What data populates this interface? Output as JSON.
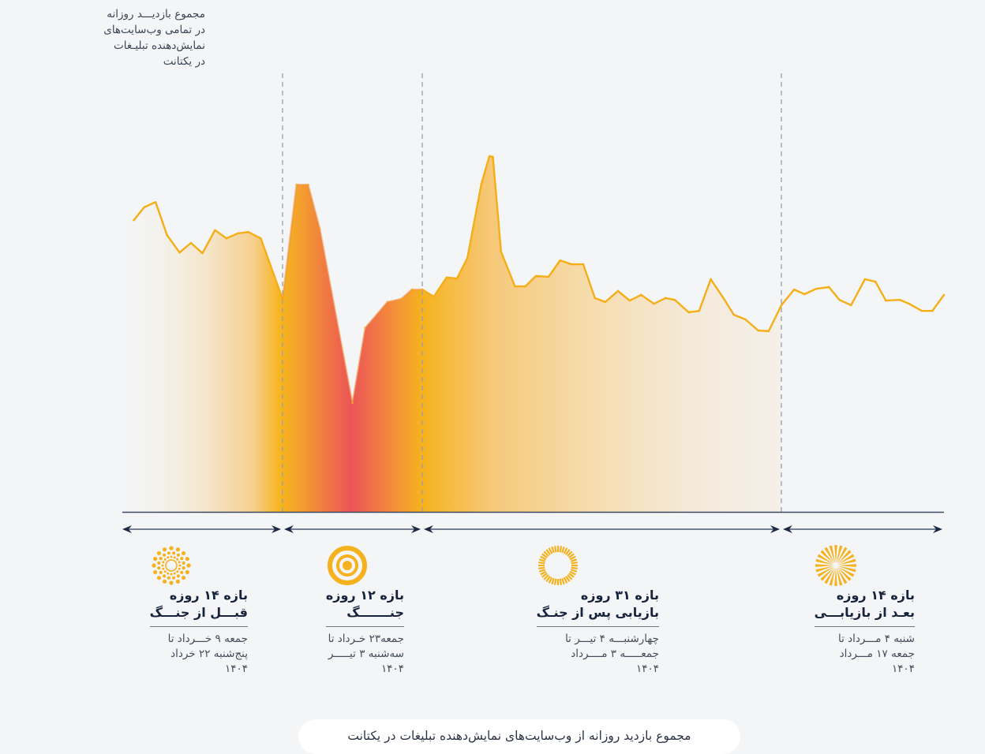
{
  "chart_data": {
    "type": "area",
    "title": "مجموع بازدید روزانه از وب‌سایت‌های نمایش‌دهنده تبلیغات در یکتانت",
    "ylabel_lines": [
      "مجموع بازدیـــد روزانه",
      "در تمامی وب‌سایت‌های",
      "نمایش‌دهنده تبلیـغات",
      "در یکتانت"
    ],
    "xlabel": "",
    "y_unit": "relative index (peak = 100)",
    "ylim": [
      0,
      100
    ],
    "xlim": [
      0,
      71
    ],
    "grid": false,
    "x": [
      1.0,
      1.9,
      2.9,
      3.9,
      5.0,
      6.0,
      7.0,
      8.1,
      9.1,
      10.1,
      11.0,
      12.1,
      14.0,
      15.2,
      16.2,
      17.2,
      20.0,
      21.1,
      23.0,
      24.2,
      25.1,
      26.0,
      27.0,
      28.1,
      29.0,
      29.9,
      31.1,
      31.8,
      32.1,
      32.8,
      34.0,
      34.9,
      35.8,
      36.9,
      37.9,
      38.9,
      39.9,
      40.9,
      41.8,
      42.9,
      43.9,
      44.9,
      46.0,
      47.0,
      47.8,
      49.0,
      49.9,
      50.9,
      52.0,
      52.9,
      53.9,
      55.0,
      55.9,
      57.0,
      58.1,
      59.0,
      60.0,
      61.1,
      62.0,
      63.0,
      64.2,
      65.1,
      66.0,
      67.2,
      68.0,
      69.1,
      70.0,
      71.0
    ],
    "y": [
      82.0,
      85.6,
      87.1,
      77.8,
      72.9,
      75.6,
      72.7,
      79.2,
      76.9,
      78.3,
      78.7,
      76.9,
      59.9,
      92.0,
      92.0,
      79.6,
      30.6,
      51.7,
      59.0,
      59.9,
      62.5,
      62.5,
      60.5,
      65.9,
      65.6,
      71.4,
      92.2,
      100.0,
      99.8,
      73.2,
      63.4,
      63.4,
      66.3,
      66.1,
      70.7,
      69.6,
      69.6,
      60.1,
      59.0,
      62.1,
      59.4,
      61.0,
      58.5,
      60.1,
      59.6,
      56.1,
      56.5,
      65.4,
      60.1,
      55.4,
      54.1,
      51.0,
      50.8,
      58.1,
      62.5,
      61.2,
      62.7,
      63.2,
      59.6,
      58.1,
      65.4,
      64.7,
      59.4,
      59.6,
      58.5,
      56.5,
      56.5,
      61.0
    ],
    "dividers": [
      14,
      26,
      57
    ],
    "periods": [
      {
        "name": "pre-war",
        "start": 0,
        "end": 14,
        "icon": "dotted-sun-icon",
        "title1": "بازه ۱۴ روزه",
        "title2": "قبـــل از جنـــگ",
        "dates": [
          "جمعه ۹ خـــرداد تا",
          "پنج‌شنبه ۲۲ خرداد",
          "۱۴۰۴"
        ]
      },
      {
        "name": "war",
        "start": 14,
        "end": 26,
        "icon": "target-icon",
        "title1": "بازه ۱۲ روزه",
        "title2": "جنـــــــگ",
        "dates": [
          "جمعه۲۳ خـرداد تا",
          "سه‌شنبه ۳ تیـــــر",
          "۱۴۰۴"
        ]
      },
      {
        "name": "recovery",
        "start": 26,
        "end": 57,
        "icon": "ring-sun-icon",
        "title1": "بازه ۳۱ روزه",
        "title2": "بازیابی پس از جنـگ",
        "dates": [
          "چهارشنبـــه ۴ تیـــر تا",
          "جمعـــــه ۳ مــــرداد",
          "۱۴۰۴"
        ]
      },
      {
        "name": "post-recovery",
        "start": 57,
        "end": 71,
        "icon": "burst-sun-icon",
        "title1": "بازه ۱۴ روزه",
        "title2": "بعـد از بازیابـــی",
        "dates": [
          "شنبه ۴ مـــرداد تا",
          "جمعه ۱۷ مـــرداد",
          "۱۴۰۴"
        ]
      }
    ],
    "colors": {
      "line": "#f5ae16",
      "war": "#ec5457",
      "orange": "#f4a52a",
      "fade": "#f4eee6",
      "axis": "#2c3a52",
      "divider": "#9a9ea6",
      "icon": "#f5b21e"
    }
  },
  "caption": "مجموع بازدید روزانه از وب‌سایت‌های نمایش‌دهنده تبلیغات در یکتانت"
}
